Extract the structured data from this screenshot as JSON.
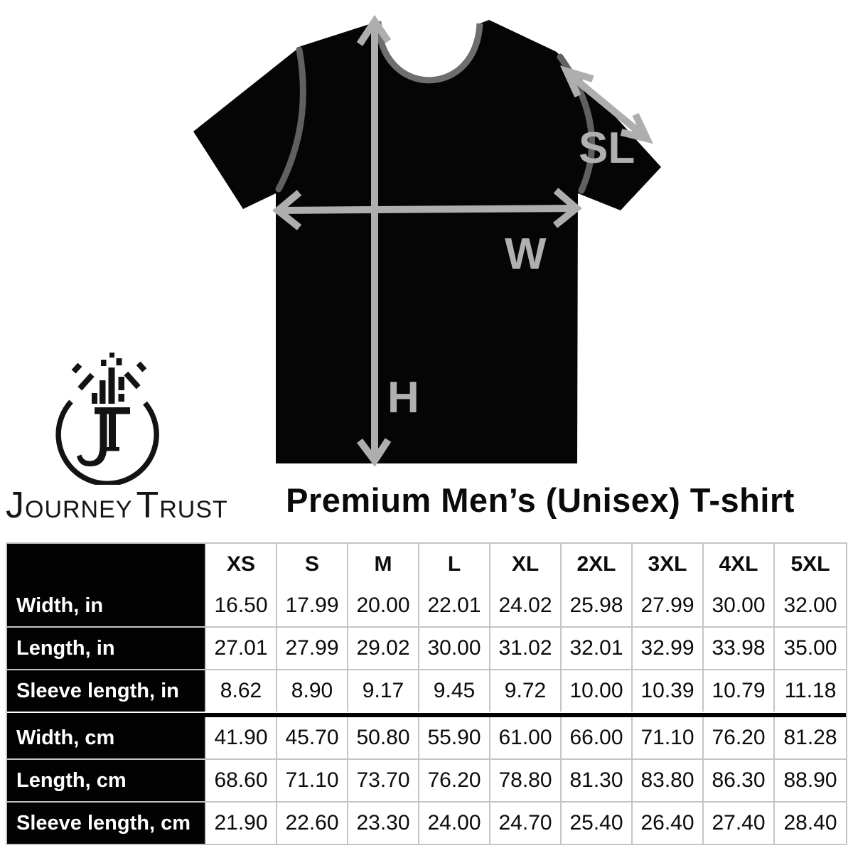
{
  "brand": {
    "monogram": "JT",
    "name": "JourneyTrust",
    "name_parts": {
      "j": "J",
      "ourney": "OURNEY",
      "t": "T",
      "rust": "RUST"
    }
  },
  "product": {
    "title": "Premium Men’s (Unisex) T-shirt"
  },
  "diagram": {
    "labels": {
      "height": "H",
      "width": "W",
      "sleeve": "SL"
    },
    "colors": {
      "shirt": "#050505",
      "arrow": "#aeaeae",
      "label": "#b0b0b0",
      "seam": "#606060",
      "neckband": "#6e6e6e"
    }
  },
  "size_chart": {
    "columns": [
      "XS",
      "S",
      "M",
      "L",
      "XL",
      "2XL",
      "3XL",
      "4XL",
      "5XL"
    ],
    "divider_index": 3,
    "rows": [
      {
        "label": "Width, in",
        "values": [
          "16.50",
          "17.99",
          "20.00",
          "22.01",
          "24.02",
          "25.98",
          "27.99",
          "30.00",
          "32.00"
        ]
      },
      {
        "label": "Length, in",
        "values": [
          "27.01",
          "27.99",
          "29.02",
          "30.00",
          "31.02",
          "32.01",
          "32.99",
          "33.98",
          "35.00"
        ]
      },
      {
        "label": "Sleeve length, in",
        "values": [
          "8.62",
          "8.90",
          "9.17",
          "9.45",
          "9.72",
          "10.00",
          "10.39",
          "10.79",
          "11.18"
        ]
      },
      {
        "label": "Width, cm",
        "values": [
          "41.90",
          "45.70",
          "50.80",
          "55.90",
          "61.00",
          "66.00",
          "71.10",
          "76.20",
          "81.28"
        ]
      },
      {
        "label": "Length, cm",
        "values": [
          "68.60",
          "71.10",
          "73.70",
          "76.20",
          "78.80",
          "81.30",
          "83.80",
          "86.30",
          "88.90"
        ]
      },
      {
        "label": "Sleeve length, cm",
        "values": [
          "21.90",
          "22.60",
          "23.30",
          "24.00",
          "24.70",
          "25.40",
          "26.40",
          "27.40",
          "28.40"
        ]
      }
    ]
  },
  "chart_data": {
    "type": "table",
    "title": "Premium Men’s (Unisex) T-shirt",
    "columns": [
      "XS",
      "S",
      "M",
      "L",
      "XL",
      "2XL",
      "3XL",
      "4XL",
      "5XL"
    ],
    "rows": [
      {
        "label": "Width, in",
        "values": [
          16.5,
          17.99,
          20.0,
          22.01,
          24.02,
          25.98,
          27.99,
          30.0,
          32.0
        ]
      },
      {
        "label": "Length, in",
        "values": [
          27.01,
          27.99,
          29.02,
          30.0,
          31.02,
          32.01,
          32.99,
          33.98,
          35.0
        ]
      },
      {
        "label": "Sleeve length, in",
        "values": [
          8.62,
          8.9,
          9.17,
          9.45,
          9.72,
          10.0,
          10.39,
          10.79,
          11.18
        ]
      },
      {
        "label": "Width, cm",
        "values": [
          41.9,
          45.7,
          50.8,
          55.9,
          61.0,
          66.0,
          71.1,
          76.2,
          81.28
        ]
      },
      {
        "label": "Length, cm",
        "values": [
          68.6,
          71.1,
          73.7,
          76.2,
          78.8,
          81.3,
          83.8,
          86.3,
          88.9
        ]
      },
      {
        "label": "Sleeve length, cm",
        "values": [
          21.9,
          22.6,
          23.3,
          24.0,
          24.7,
          25.4,
          26.4,
          27.4,
          28.4
        ]
      }
    ],
    "annotations": [
      "H = length",
      "W = width",
      "SL = sleeve length"
    ]
  }
}
